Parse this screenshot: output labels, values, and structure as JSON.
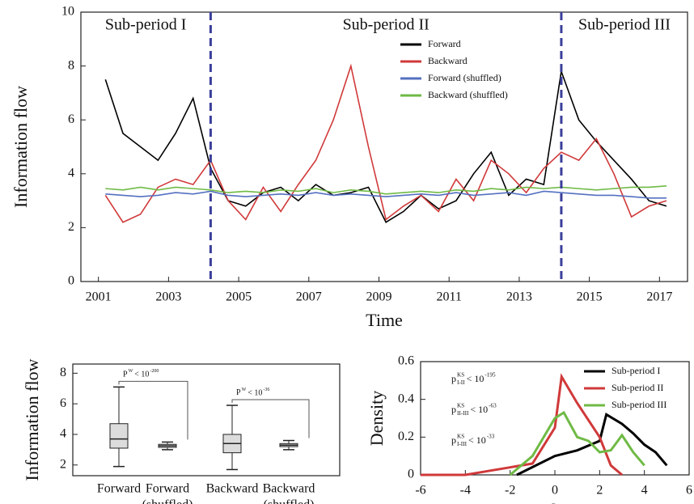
{
  "chart_data": [
    {
      "type": "line",
      "xlabel": "Time",
      "ylabel": "Information flow",
      "x": [
        2001.2,
        2001.7,
        2002.2,
        2002.7,
        2003.2,
        2003.7,
        2004.2,
        2004.7,
        2005.2,
        2005.7,
        2006.2,
        2006.7,
        2007.2,
        2007.7,
        2008.2,
        2008.7,
        2009.2,
        2009.7,
        2010.2,
        2010.7,
        2011.2,
        2011.7,
        2012.2,
        2012.7,
        2013.2,
        2013.7,
        2014.2,
        2014.7,
        2015.2,
        2015.7,
        2016.2,
        2016.7,
        2017.2
      ],
      "series": [
        {
          "name": "Forward",
          "color": "#000000",
          "values": [
            7.5,
            5.5,
            5.0,
            4.5,
            5.5,
            6.8,
            4.2,
            3.0,
            2.8,
            3.3,
            3.5,
            3.0,
            3.6,
            3.2,
            3.3,
            3.5,
            2.2,
            2.6,
            3.2,
            2.7,
            3.0,
            4.0,
            4.8,
            3.2,
            3.8,
            3.6,
            7.8,
            6.0,
            5.2,
            4.5,
            3.8,
            3.0,
            2.8
          ]
        },
        {
          "name": "Backward",
          "color": "#d0393a",
          "values": [
            3.2,
            2.2,
            2.5,
            3.5,
            3.8,
            3.6,
            4.5,
            3.0,
            2.3,
            3.5,
            2.6,
            3.6,
            4.5,
            6.0,
            8.0,
            5.0,
            2.3,
            2.8,
            3.2,
            2.6,
            3.8,
            3.0,
            4.5,
            4.0,
            3.3,
            4.2,
            4.8,
            4.5,
            5.3,
            4.0,
            2.4,
            2.8,
            3.0
          ]
        },
        {
          "name": "Forward (shuffled)",
          "color": "#5470c0",
          "values": [
            3.25,
            3.2,
            3.15,
            3.2,
            3.3,
            3.25,
            3.35,
            3.2,
            3.15,
            3.2,
            3.25,
            3.2,
            3.3,
            3.2,
            3.25,
            3.2,
            3.15,
            3.2,
            3.25,
            3.2,
            3.3,
            3.2,
            3.25,
            3.3,
            3.2,
            3.35,
            3.3,
            3.25,
            3.2,
            3.2,
            3.15,
            3.1,
            3.1
          ]
        },
        {
          "name": "Backward (shuffled)",
          "color": "#6fba45",
          "values": [
            3.45,
            3.4,
            3.5,
            3.4,
            3.5,
            3.45,
            3.4,
            3.3,
            3.35,
            3.3,
            3.4,
            3.35,
            3.45,
            3.3,
            3.4,
            3.35,
            3.25,
            3.3,
            3.35,
            3.3,
            3.4,
            3.35,
            3.45,
            3.4,
            3.5,
            3.45,
            3.5,
            3.45,
            3.4,
            3.45,
            3.5,
            3.5,
            3.55
          ]
        }
      ],
      "xlim": [
        2000.5,
        2017.8
      ],
      "xticks": [
        2001,
        2003,
        2005,
        2007,
        2009,
        2011,
        2013,
        2015,
        2017
      ],
      "ylim": [
        0,
        10
      ],
      "yticks": [
        0,
        2,
        4,
        6,
        8,
        10
      ],
      "boundaries": [
        2004.2,
        2014.2
      ],
      "boundary_color": "#3b3f9a",
      "periods": [
        "Sub-period I",
        "Sub-period II",
        "Sub-period III"
      ],
      "legend": "upper right"
    },
    {
      "type": "box",
      "ylabel": "Information flow",
      "boxes": [
        {
          "label": [
            "Forward"
          ],
          "whislo": 1.9,
          "q1": 3.1,
          "med": 3.7,
          "q3": 4.7,
          "whishi": 7.1
        },
        {
          "label": [
            "Forward",
            "(shuffled)"
          ],
          "whislo": 3.0,
          "q1": 3.15,
          "med": 3.25,
          "q3": 3.35,
          "whishi": 3.5
        },
        {
          "label": [
            "Backward"
          ],
          "whislo": 1.7,
          "q1": 2.8,
          "med": 3.4,
          "q3": 4.0,
          "whishi": 5.9
        },
        {
          "label": [
            "Backward",
            "(shuffled)"
          ],
          "whislo": 3.0,
          "q1": 3.2,
          "med": 3.3,
          "q3": 3.4,
          "whishi": 3.6
        }
      ],
      "color": "#dcdcdc",
      "ylim": [
        1.3,
        8.6
      ],
      "yticks": [
        2,
        4,
        6,
        8
      ],
      "tests": [
        {
          "between": [
            0,
            1
          ],
          "base": "P",
          "sup": "W",
          "text": "< 10",
          "exp": "-200"
        },
        {
          "between": [
            2,
            3
          ],
          "base": "P",
          "sup": "W",
          "text": "< 10",
          "exp": "-36"
        }
      ]
    },
    {
      "type": "line",
      "ylabel": "Density",
      "xlabel": {
        "base": "δ",
        "sub": "f-b"
      },
      "series": [
        {
          "name": "Sub-period I",
          "color": "#000000",
          "x": [
            -1.7,
            0,
            1,
            2,
            2.3,
            3,
            3.5,
            4,
            4.5,
            5
          ],
          "values": [
            0,
            0.1,
            0.13,
            0.18,
            0.32,
            0.27,
            0.22,
            0.16,
            0.12,
            0.05
          ]
        },
        {
          "name": "Sub-period II",
          "color": "#d0393a",
          "x": [
            -6,
            -4,
            -3,
            -2,
            -1,
            0,
            0.3,
            1,
            2,
            2.5,
            3
          ],
          "values": [
            0,
            0,
            0.02,
            0.04,
            0.06,
            0.25,
            0.52,
            0.38,
            0.2,
            0.05,
            0
          ]
        },
        {
          "name": "Sub-period III",
          "color": "#6fba45",
          "x": [
            -2,
            -1,
            0,
            0.4,
            1,
            1.5,
            2,
            2.5,
            3,
            3.5,
            4
          ],
          "values": [
            0,
            0.1,
            0.3,
            0.33,
            0.2,
            0.18,
            0.12,
            0.13,
            0.21,
            0.12,
            0.05
          ]
        }
      ],
      "xlim": [
        -6,
        6
      ],
      "xticks": [
        -6,
        -4,
        -2,
        0,
        2,
        4,
        6
      ],
      "ylim": [
        0,
        0.6
      ],
      "yticks": [
        0,
        0.2,
        0.4,
        0.6
      ],
      "legend": "upper right",
      "tests": [
        {
          "base": "p",
          "sup": "KS",
          "sub": "I-II",
          "text": "< 10",
          "exp": "-195"
        },
        {
          "base": "p",
          "sup": "KS",
          "sub": "II-III",
          "text": "< 10",
          "exp": "-63"
        },
        {
          "base": "p",
          "sup": "KS",
          "sub": "I-III",
          "text": "< 10",
          "exp": "-33"
        }
      ]
    }
  ]
}
